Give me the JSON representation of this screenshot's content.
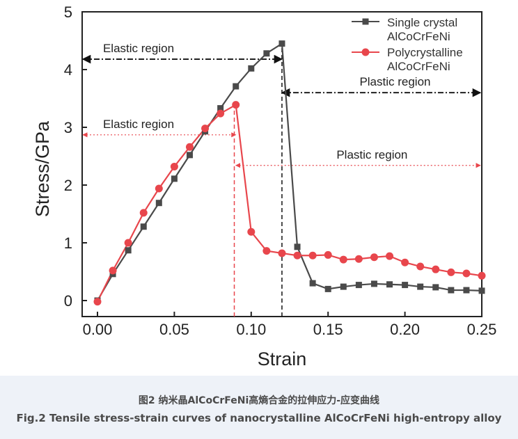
{
  "chart_data": {
    "type": "line",
    "xlabel": "Strain",
    "ylabel": "Stress/GPa",
    "xlim": [
      0,
      0.25
    ],
    "ylim": [
      -0.3,
      5
    ],
    "xticks": [
      0,
      0.05,
      0.1,
      0.15,
      0.2,
      0.25
    ],
    "xtick_labels": [
      "0.00",
      "0.05",
      "0.10",
      "0.15",
      "0.20",
      "0.25"
    ],
    "yticks": [
      0,
      1,
      2,
      3,
      4,
      5
    ],
    "ytick_labels": [
      "0",
      "1",
      "2",
      "3",
      "4",
      "5"
    ],
    "legend_position": "top-right",
    "series": [
      {
        "name": "Single crystal AlCoCrFeNi",
        "legend_lines": [
          "Single crystal",
          "AlCoCrFeNi"
        ],
        "color": "#4a4a4a",
        "marker": "square",
        "x": [
          0.0,
          0.01,
          0.02,
          0.03,
          0.04,
          0.05,
          0.06,
          0.07,
          0.08,
          0.09,
          0.1,
          0.11,
          0.12,
          0.13,
          0.14,
          0.15,
          0.16,
          0.17,
          0.18,
          0.19,
          0.2,
          0.21,
          0.22,
          0.23,
          0.24,
          0.25
        ],
        "y": [
          0.0,
          0.46,
          0.87,
          1.28,
          1.69,
          2.11,
          2.52,
          2.93,
          3.33,
          3.71,
          4.02,
          4.28,
          4.45,
          0.93,
          0.3,
          0.2,
          0.24,
          0.27,
          0.29,
          0.28,
          0.27,
          0.24,
          0.23,
          0.18,
          0.18,
          0.17
        ]
      },
      {
        "name": "Polycrystalline AlCoCrFeNi",
        "legend_lines": [
          "Polycrystalline",
          "AlCoCrFeNi"
        ],
        "color": "#e8464c",
        "marker": "circle",
        "x": [
          0.0,
          0.01,
          0.02,
          0.03,
          0.04,
          0.05,
          0.06,
          0.07,
          0.08,
          0.09,
          0.1,
          0.11,
          0.12,
          0.13,
          0.14,
          0.15,
          0.16,
          0.17,
          0.18,
          0.19,
          0.2,
          0.21,
          0.22,
          0.23,
          0.24,
          0.25
        ],
        "y": [
          -0.02,
          0.52,
          1.0,
          1.52,
          1.94,
          2.32,
          2.66,
          2.98,
          3.24,
          3.39,
          1.19,
          0.86,
          0.82,
          0.78,
          0.78,
          0.79,
          0.71,
          0.72,
          0.75,
          0.77,
          0.66,
          0.59,
          0.54,
          0.49,
          0.47,
          0.43
        ]
      }
    ],
    "annotations": [
      {
        "text": "Elastic region",
        "color": "#111111",
        "arrow": "double",
        "style": "dash-dot",
        "x_from": 0.0,
        "x_to": 0.12,
        "y": 4.18
      },
      {
        "text": "Plastic region",
        "color": "#111111",
        "arrow": "double",
        "style": "dash-dot",
        "x_from": 0.12,
        "x_to": 0.25,
        "y": 3.6
      },
      {
        "text": "Elastic region",
        "color": "#e8464c",
        "arrow": "double",
        "style": "dot",
        "x_from": 0.0,
        "x_to": 0.09,
        "y": 2.87
      },
      {
        "text": "Plastic region",
        "color": "#e8464c",
        "arrow": "double",
        "style": "dot",
        "x_from": 0.09,
        "x_to": 0.25,
        "y": 2.34
      }
    ],
    "vertical_lines": [
      {
        "x": 0.12,
        "color": "#111111",
        "style": "dashed"
      },
      {
        "x": 0.089,
        "color": "#e8464c",
        "style": "dashed"
      }
    ]
  },
  "caption": {
    "cn": "图2 纳米晶AlCoCrFeNi高熵合金的拉伸应力-应变曲线",
    "en": "Fig.2 Tensile stress-strain curves of nanocrystalline AlCoCrFeNi high-entropy alloy"
  }
}
